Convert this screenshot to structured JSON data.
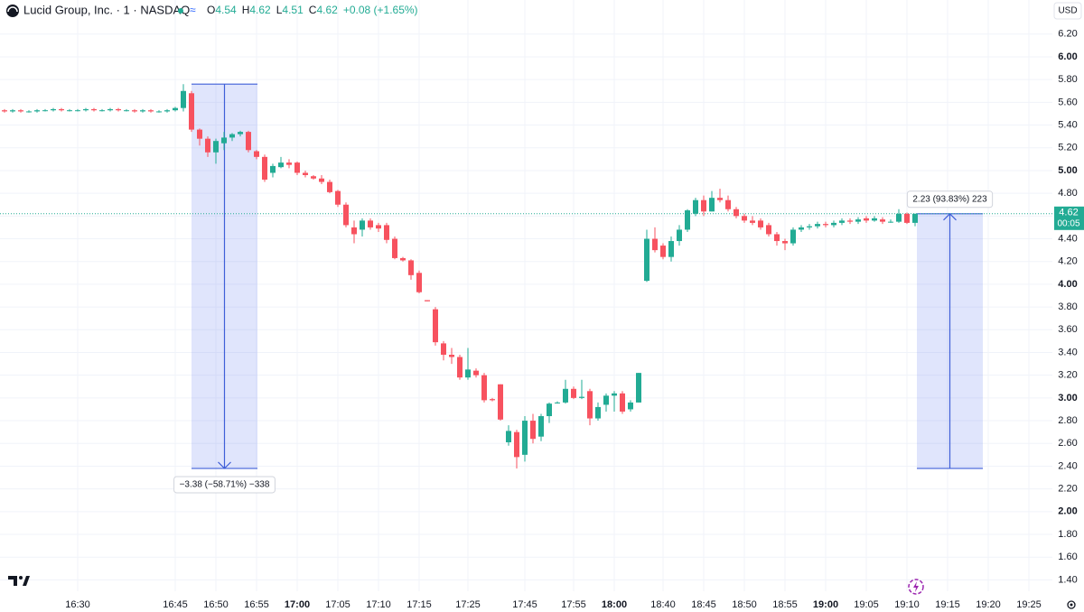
{
  "chart_data": {
    "type": "candlestick",
    "title": "Lucid Group, Inc. · 1 · NASDAQ",
    "legend": [
      {
        "key": "O",
        "value": "4.54"
      },
      {
        "key": "H",
        "value": "4.62"
      },
      {
        "key": "L",
        "value": "4.51"
      },
      {
        "key": "C",
        "value": "4.62"
      }
    ],
    "change": "+0.08 (+1.65%)",
    "currency": "USD",
    "up_color": "#22ab94",
    "down_color": "#f7525f",
    "grid": true,
    "ylim": [
      1.3,
      6.5
    ],
    "yticks": [
      {
        "value": 1.4,
        "label": "1.40"
      },
      {
        "value": 1.6,
        "label": "1.60"
      },
      {
        "value": 1.8,
        "label": "1.80"
      },
      {
        "value": 2.0,
        "label": "2.00"
      },
      {
        "value": 2.2,
        "label": "2.20"
      },
      {
        "value": 2.4,
        "label": "2.40"
      },
      {
        "value": 2.6,
        "label": "2.60"
      },
      {
        "value": 2.8,
        "label": "2.80"
      },
      {
        "value": 3.0,
        "label": "3.00"
      },
      {
        "value": 3.2,
        "label": "3.20"
      },
      {
        "value": 3.4,
        "label": "3.40"
      },
      {
        "value": 3.6,
        "label": "3.60"
      },
      {
        "value": 3.8,
        "label": "3.80"
      },
      {
        "value": 4.0,
        "label": "4.00"
      },
      {
        "value": 4.2,
        "label": "4.20"
      },
      {
        "value": 4.4,
        "label": "4.40"
      },
      {
        "value": 4.6,
        "label": "4.60"
      },
      {
        "value": 4.8,
        "label": "4.80"
      },
      {
        "value": 5.0,
        "label": "5.00"
      },
      {
        "value": 5.2,
        "label": "5.20"
      },
      {
        "value": 5.4,
        "label": "5.40"
      },
      {
        "value": 5.6,
        "label": "5.60"
      },
      {
        "value": 5.8,
        "label": "5.80"
      },
      {
        "value": 6.0,
        "label": "6.00"
      },
      {
        "value": 6.2,
        "label": "6.20"
      }
    ],
    "categories": [
      null,
      null,
      null,
      null,
      null,
      null,
      null,
      null,
      null,
      "16:30",
      null,
      null,
      null,
      null,
      null,
      null,
      null,
      null,
      null,
      null,
      null,
      "16:45",
      null,
      null,
      null,
      null,
      "16:50",
      null,
      null,
      null,
      null,
      "16:55",
      null,
      null,
      null,
      null,
      "17:00",
      null,
      null,
      null,
      null,
      "17:05",
      null,
      null,
      null,
      null,
      "17:10",
      null,
      null,
      null,
      null,
      "17:15",
      null,
      null,
      null,
      null,
      null,
      "17:25",
      null,
      null,
      null,
      null,
      null,
      null,
      "17:45",
      null,
      null,
      null,
      null,
      null,
      "17:55",
      null,
      null,
      null,
      null,
      "18:00",
      null,
      null,
      null,
      null,
      null,
      "18:40",
      null,
      null,
      null,
      null,
      "18:45",
      null,
      null,
      null,
      null,
      "18:50",
      null,
      null,
      null,
      null,
      "18:55",
      null,
      null,
      null,
      null,
      "19:00",
      null,
      null,
      null,
      null,
      "19:05",
      null,
      null,
      null,
      null,
      "19:10",
      null,
      null,
      null,
      null,
      "19:15",
      null,
      null,
      null,
      null,
      "19:20",
      null,
      null,
      null,
      null,
      "19:25",
      null
    ],
    "open": [
      5.53,
      5.52,
      5.53,
      5.52,
      5.52,
      5.53,
      5.53,
      5.54,
      5.53,
      5.53,
      5.53,
      5.54,
      5.53,
      5.53,
      5.54,
      5.53,
      5.53,
      5.52,
      5.53,
      5.52,
      5.52,
      5.53,
      5.55,
      5.68,
      5.36,
      5.28,
      5.16,
      5.24,
      5.29,
      5.32,
      5.34,
      5.17,
      5.12,
      4.98,
      5.03,
      5.07,
      5.07,
      4.98,
      4.95,
      4.93,
      4.9,
      4.82,
      4.7,
      4.5,
      4.48,
      4.56,
      4.52,
      4.52,
      4.4,
      4.23,
      4.21,
      4.1,
      3.86,
      3.78,
      3.48,
      3.38,
      3.36,
      3.18,
      3.24,
      3.2,
      2.99,
      3.12,
      2.61,
      2.7,
      2.5,
      2.8,
      2.66,
      2.84,
      2.96,
      2.96,
      3.08,
      3.0,
      3.06,
      2.82,
      2.94,
      3.02,
      3.04,
      2.9,
      2.96,
      4.03,
      4.4,
      4.34,
      4.24,
      4.38,
      4.48,
      4.62,
      4.74,
      4.64,
      4.76,
      4.74,
      4.66,
      4.6,
      4.56,
      4.56,
      4.52,
      4.44,
      4.38,
      4.36,
      4.48,
      4.5,
      4.51,
      4.53,
      4.52,
      4.54,
      4.56,
      4.55,
      4.58,
      4.56,
      4.57,
      4.55,
      4.55,
      4.62,
      4.54,
      null,
      null,
      null,
      null,
      null,
      null,
      null,
      null,
      null,
      null,
      null,
      null,
      null,
      null,
      null
    ],
    "high": [
      5.54,
      5.54,
      5.54,
      5.53,
      5.54,
      5.54,
      5.55,
      5.55,
      5.54,
      5.54,
      5.55,
      5.55,
      5.54,
      5.55,
      5.55,
      5.54,
      5.54,
      5.54,
      5.54,
      5.53,
      5.54,
      5.56,
      5.76,
      5.7,
      5.37,
      5.3,
      5.28,
      5.34,
      5.33,
      5.35,
      5.35,
      5.18,
      5.14,
      5.06,
      5.12,
      5.1,
      5.08,
      5.0,
      4.96,
      4.96,
      4.92,
      4.83,
      4.72,
      4.56,
      4.58,
      4.58,
      4.54,
      4.54,
      4.42,
      4.24,
      4.22,
      4.12,
      3.86,
      3.8,
      3.5,
      3.44,
      3.38,
      3.44,
      3.26,
      3.22,
      3.0,
      3.12,
      2.76,
      2.72,
      2.84,
      2.86,
      2.86,
      2.96,
      2.97,
      3.16,
      3.1,
      3.16,
      3.08,
      2.96,
      3.04,
      3.06,
      3.06,
      2.98,
      3.22,
      4.48,
      4.5,
      4.36,
      4.42,
      4.52,
      4.66,
      4.76,
      4.78,
      4.82,
      4.84,
      4.78,
      4.68,
      4.62,
      4.6,
      4.58,
      4.54,
      4.46,
      4.4,
      4.5,
      4.52,
      4.53,
      4.55,
      4.55,
      4.56,
      4.58,
      4.58,
      4.59,
      4.6,
      4.6,
      4.59,
      4.57,
      4.66,
      4.63,
      4.62,
      null,
      null,
      null,
      null,
      null,
      null,
      null,
      null,
      null,
      null,
      null,
      null,
      null,
      null,
      null
    ],
    "low": [
      5.51,
      5.51,
      5.51,
      5.51,
      5.51,
      5.52,
      5.52,
      5.52,
      5.52,
      5.52,
      5.52,
      5.52,
      5.52,
      5.52,
      5.52,
      5.52,
      5.51,
      5.51,
      5.51,
      5.51,
      5.51,
      5.52,
      5.52,
      5.34,
      5.22,
      5.12,
      5.06,
      5.18,
      5.26,
      5.3,
      5.16,
      5.1,
      4.9,
      4.94,
      5.02,
      5.02,
      4.96,
      4.94,
      4.92,
      4.88,
      4.8,
      4.68,
      4.5,
      4.36,
      4.42,
      4.48,
      4.46,
      4.36,
      4.22,
      4.2,
      4.04,
      3.92,
      3.85,
      3.46,
      3.33,
      3.3,
      3.16,
      3.16,
      3.18,
      2.96,
      2.97,
      2.8,
      2.58,
      2.38,
      2.44,
      2.6,
      2.62,
      2.78,
      2.95,
      2.95,
      2.99,
      2.99,
      2.76,
      2.8,
      2.88,
      2.88,
      2.86,
      2.88,
      2.96,
      4.02,
      4.28,
      4.22,
      4.2,
      4.34,
      4.46,
      4.6,
      4.6,
      4.64,
      4.72,
      4.64,
      4.58,
      4.54,
      4.52,
      4.48,
      4.42,
      4.34,
      4.3,
      4.34,
      4.46,
      4.48,
      4.49,
      4.5,
      4.5,
      4.52,
      4.53,
      4.53,
      4.54,
      4.55,
      4.53,
      4.54,
      4.54,
      4.53,
      4.51,
      null,
      null,
      null,
      null,
      null,
      null,
      null,
      null,
      null,
      null,
      null,
      null,
      null,
      null,
      null
    ],
    "close": [
      5.52,
      5.53,
      5.52,
      5.52,
      5.53,
      5.53,
      5.54,
      5.53,
      5.53,
      5.53,
      5.54,
      5.53,
      5.53,
      5.54,
      5.53,
      5.53,
      5.52,
      5.53,
      5.52,
      5.52,
      5.53,
      5.55,
      5.7,
      5.36,
      5.28,
      5.16,
      5.26,
      5.29,
      5.32,
      5.34,
      5.18,
      5.12,
      4.92,
      5.04,
      5.07,
      5.05,
      4.98,
      4.96,
      4.93,
      4.9,
      4.81,
      4.7,
      4.52,
      4.44,
      4.56,
      4.5,
      4.49,
      4.39,
      4.23,
      4.21,
      4.08,
      3.93,
      3.85,
      3.49,
      3.38,
      3.36,
      3.18,
      3.25,
      3.2,
      2.98,
      2.98,
      2.81,
      2.71,
      2.48,
      2.8,
      2.64,
      2.84,
      2.95,
      2.96,
      3.08,
      3.0,
      3.01,
      2.82,
      2.92,
      3.02,
      3.04,
      2.88,
      2.96,
      3.22,
      4.4,
      4.3,
      4.24,
      4.38,
      4.48,
      4.65,
      4.74,
      4.64,
      4.76,
      4.74,
      4.66,
      4.6,
      4.56,
      4.54,
      4.5,
      4.44,
      4.38,
      4.36,
      4.48,
      4.5,
      4.51,
      4.53,
      4.52,
      4.54,
      4.56,
      4.55,
      4.57,
      4.56,
      4.58,
      4.55,
      4.55,
      4.62,
      4.54,
      4.62,
      null,
      null,
      null,
      null,
      null,
      null,
      null,
      null,
      null,
      null,
      null,
      null,
      null,
      null,
      null
    ],
    "last_price": 4.62,
    "countdown": "00:05",
    "measurements": [
      {
        "from": 5.76,
        "to": 2.38,
        "label": "−3.38 (−58.71%) −338"
      },
      {
        "from": 2.38,
        "to": 4.62,
        "label": "2.23 (93.83%) 223"
      }
    ]
  }
}
